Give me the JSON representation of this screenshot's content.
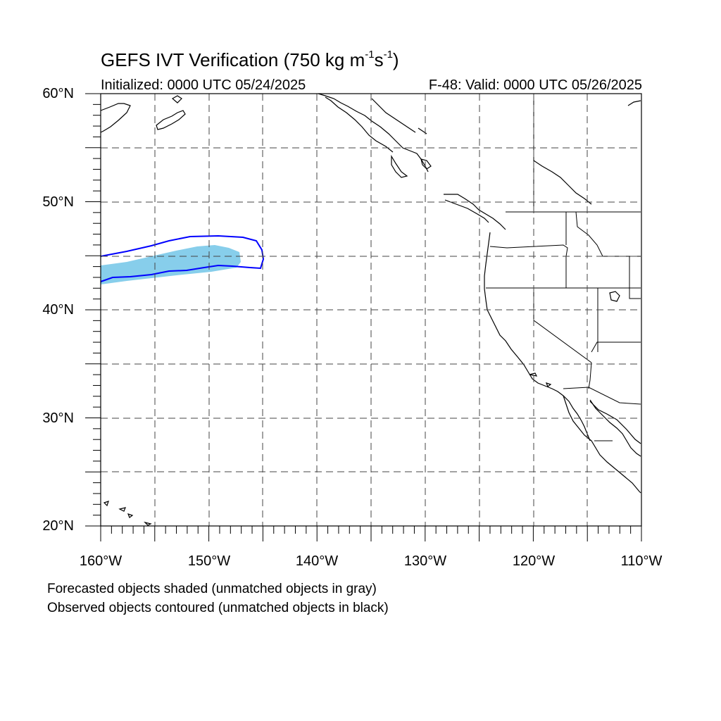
{
  "title": {
    "main": "GEFS IVT Verification (750 kg m",
    "sup1": "-1",
    "mid": "s",
    "sup2": "-1",
    "end": ")"
  },
  "initialized": "Initialized: 0000 UTC 05/24/2025",
  "valid": "F-48: Valid: 0000 UTC 05/26/2025",
  "lat_labels": [
    "60°N",
    "50°N",
    "40°N",
    "30°N",
    "20°N"
  ],
  "lon_labels": [
    "160°W",
    "150°W",
    "140°W",
    "130°W",
    "120°W",
    "110°W"
  ],
  "notes": [
    "Forecasted objects shaded (unmatched objects in gray)",
    "Observed objects contoured (unmatched objects in black)"
  ],
  "map": {
    "lon_range": [
      -160,
      -110
    ],
    "lat_range": [
      20,
      60
    ],
    "grid_spacing_deg": 5,
    "forecast_color": "#87ceeb",
    "observed_color": "#0000ff",
    "unmatched_forecast_color": "gray",
    "unmatched_observed_color": "black"
  }
}
